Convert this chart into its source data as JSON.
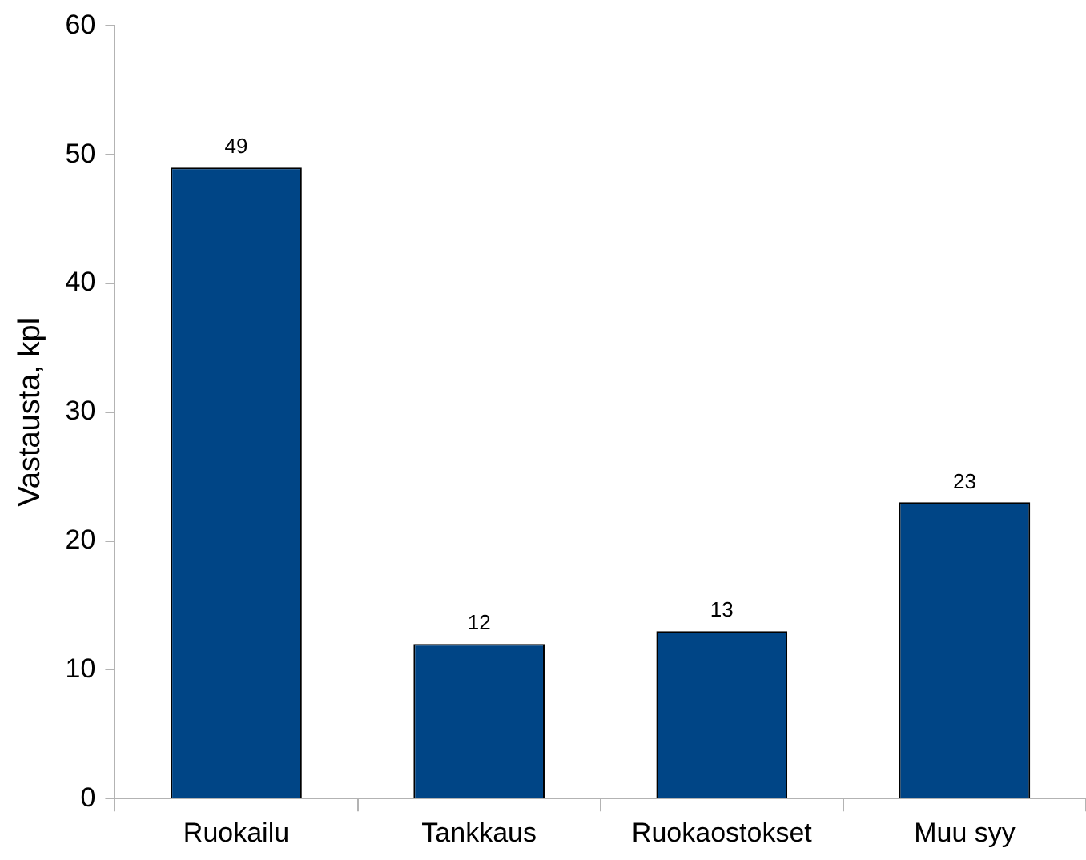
{
  "chart_data": {
    "type": "bar",
    "ylabel": "Vastausta, kpl",
    "categories": [
      "Ruokailu",
      "Tankkaus",
      "Ruokaostokset",
      "Muu syy"
    ],
    "values": [
      49,
      12,
      13,
      23
    ],
    "color": "#004586",
    "ylim": [
      0,
      60
    ],
    "yticks": [
      0,
      10,
      20,
      30,
      40,
      50,
      60
    ],
    "grid": false,
    "data_labels": true,
    "legend": false
  }
}
